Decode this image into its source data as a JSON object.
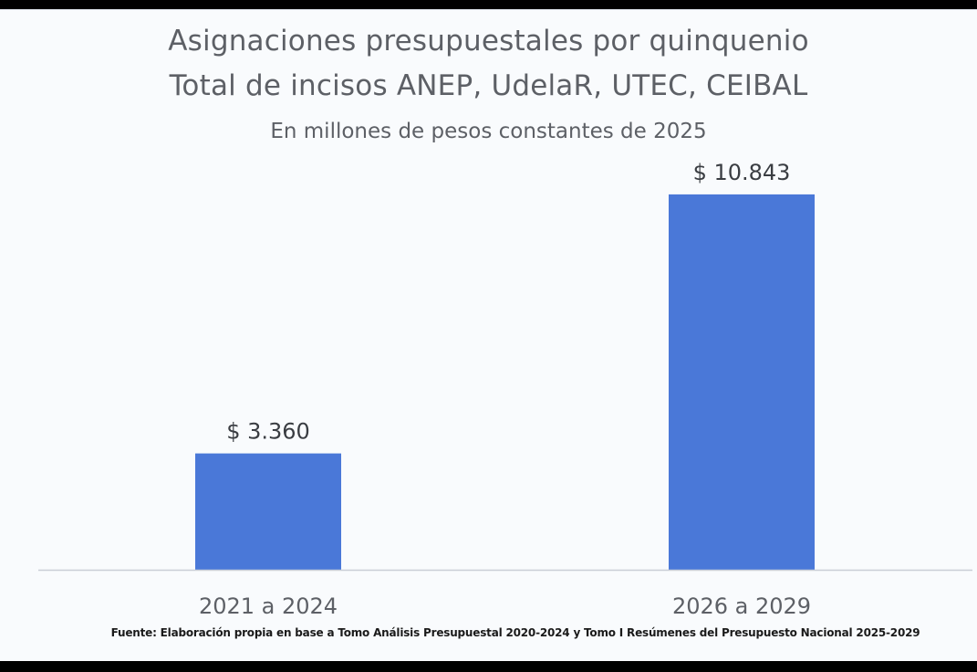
{
  "chart_data": {
    "type": "bar",
    "title": "Asignaciones presupuestales por quinquenio",
    "subtitle_line1": "Total de incisos ANEP, UdelaR, UTEC, CEIBAL",
    "subtitle_line2": "En millones de pesos constantes de 2025",
    "categories": [
      "2021 a 2024",
      "2026 a 2029"
    ],
    "values": [
      3360,
      10843
    ],
    "data_labels": [
      "$ 3.360",
      "$ 10.843"
    ],
    "xlabel": "",
    "ylabel": "",
    "ylim": [
      0,
      11500
    ],
    "grid": false,
    "legend": "none",
    "bar_color": "#4a78d8",
    "axis_color": "#c9ced6",
    "label_color": "#3a3d42",
    "source": "Fuente: Elaboración propia en base a Tomo Análisis Presupuestal 2020-2024 y Tomo I Resúmenes del Presupuesto Nacional 2025-2029"
  }
}
